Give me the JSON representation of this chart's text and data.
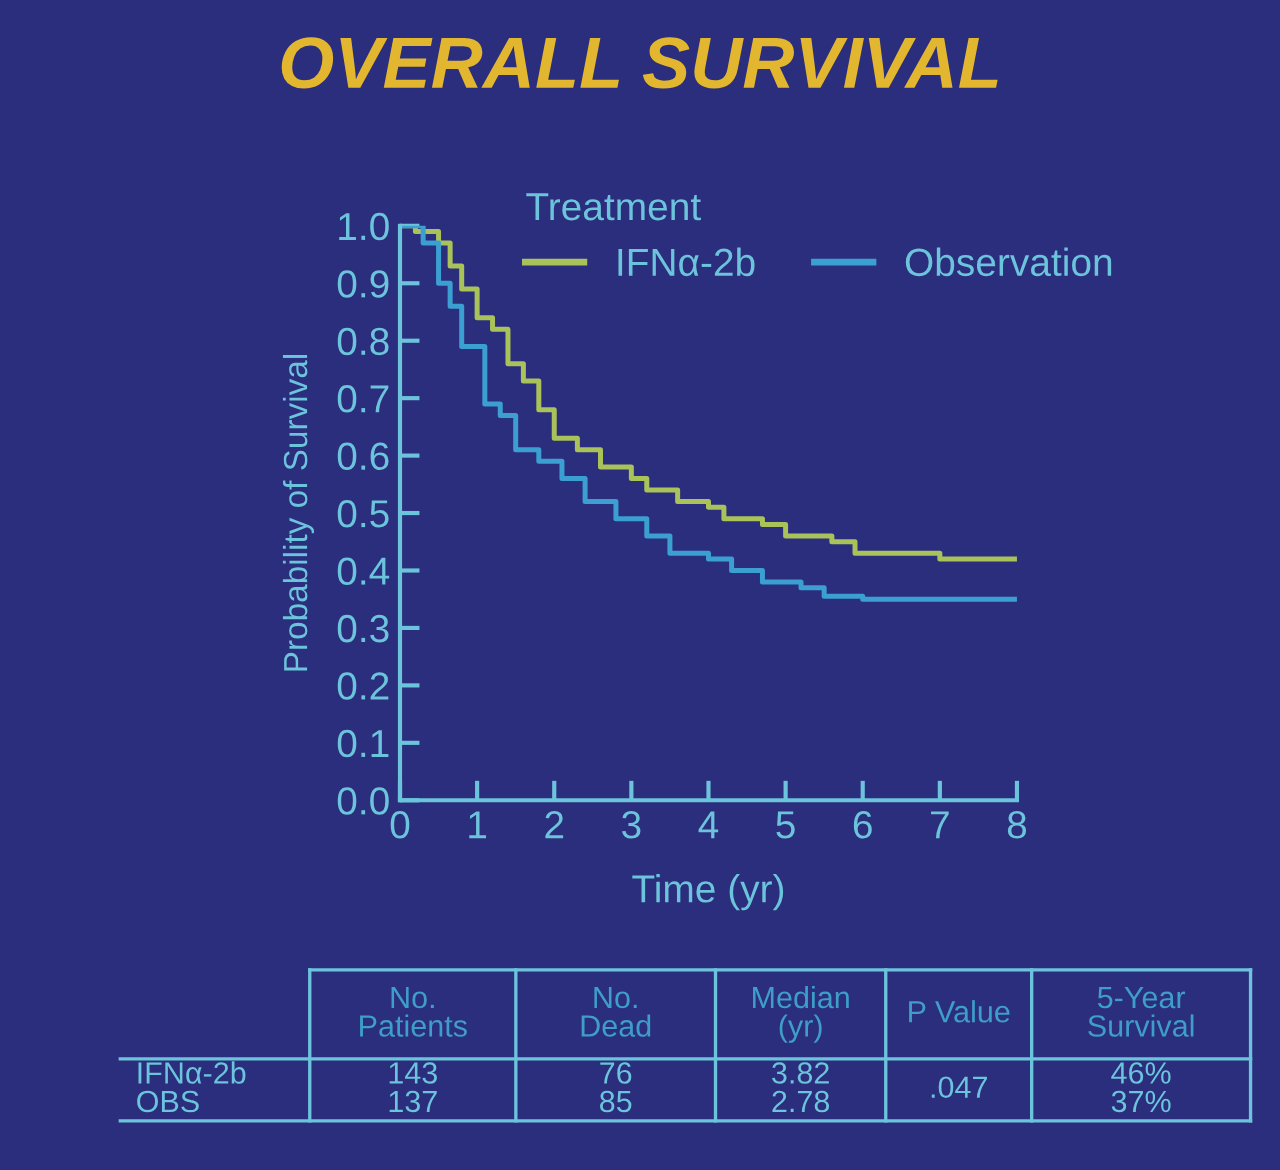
{
  "chart_data": {
    "type": "step",
    "title": "OVERALL SURVIVAL",
    "xlabel": "Time (yr)",
    "ylabel": "Probability of Survival",
    "legend_title": "Treatment",
    "legend": "top",
    "grid": false,
    "xlim": [
      0,
      8
    ],
    "xticks": [
      0,
      1,
      2,
      3,
      4,
      5,
      6,
      7,
      8
    ],
    "ylim": [
      0,
      1
    ],
    "yticks": [
      {
        "value": 0,
        "label": "0.0"
      },
      0.1,
      0.2,
      0.3,
      0.4,
      0.5,
      0.6,
      0.7,
      0.8,
      0.9,
      {
        "value": 1,
        "label": "1.0"
      }
    ],
    "series": [
      {
        "name": "IFNα-2b",
        "color": "#a9c25a",
        "x": [
          0,
          0.2,
          0.5,
          0.65,
          0.8,
          1.0,
          1.2,
          1.4,
          1.6,
          1.8,
          2.0,
          2.3,
          2.6,
          3.0,
          3.2,
          3.6,
          4.0,
          4.2,
          4.7,
          5.0,
          5.6,
          5.9,
          7.0,
          8.0
        ],
        "values": [
          1.0,
          0.99,
          0.97,
          0.93,
          0.89,
          0.84,
          0.82,
          0.76,
          0.73,
          0.68,
          0.63,
          0.61,
          0.58,
          0.56,
          0.54,
          0.52,
          0.51,
          0.49,
          0.48,
          0.46,
          0.45,
          0.43,
          0.42,
          0.42
        ]
      },
      {
        "name": "Observation",
        "color": "#3b9fd2",
        "x": [
          0,
          0.3,
          0.5,
          0.65,
          0.8,
          1.1,
          1.3,
          1.5,
          1.8,
          2.1,
          2.4,
          2.8,
          3.2,
          3.5,
          4.0,
          4.3,
          4.7,
          5.2,
          5.5,
          6.0,
          8.0
        ],
        "values": [
          1.0,
          0.97,
          0.9,
          0.86,
          0.79,
          0.69,
          0.67,
          0.61,
          0.59,
          0.56,
          0.52,
          0.49,
          0.46,
          0.43,
          0.42,
          0.4,
          0.38,
          0.37,
          0.355,
          0.35,
          0.35
        ]
      }
    ],
    "annotations": [
      "No.\nPatients",
      "No.\nDead",
      "Median\n(yr)",
      "P Value",
      "5-Year\nSurvival",
      "IFNα-2b\nOBS",
      "143\n137",
      "76\n85",
      "3.82\n2.78",
      ".047",
      "46%\n37%"
    ]
  }
}
